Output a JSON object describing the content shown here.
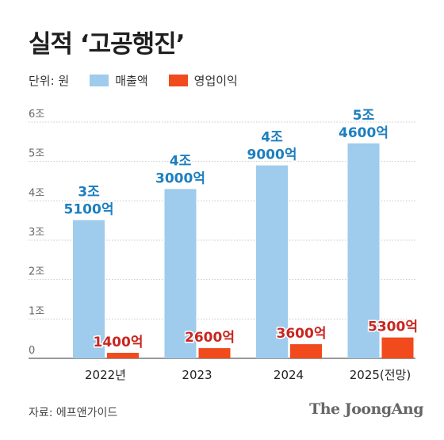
{
  "title": "실적 ‘고공행진’",
  "legend": {
    "unit": "단위: 원",
    "items": [
      {
        "label": "매출액",
        "color": "#9fcbec"
      },
      {
        "label": "영업이익",
        "color": "#f04a1d"
      }
    ]
  },
  "source": "자료: 에프앤가이드",
  "brand": "The JoongAng",
  "chart_data": {
    "type": "bar",
    "categories": [
      "2022년",
      "2023",
      "2024",
      "2025(전망)"
    ],
    "ylim": [
      0,
      6
    ],
    "yunit": "조",
    "yticks": [
      {
        "v": 0,
        "label": "0"
      },
      {
        "v": 1,
        "label": "1조"
      },
      {
        "v": 2,
        "label": "2조"
      },
      {
        "v": 3,
        "label": "3조"
      },
      {
        "v": 4,
        "label": "4조"
      },
      {
        "v": 5,
        "label": "5조"
      },
      {
        "v": 6,
        "label": "6조"
      }
    ],
    "grid": true,
    "series": [
      {
        "name": "매출액",
        "color": "#9fcbec",
        "label_color": "#1d7fbf",
        "values": [
          3.51,
          4.3,
          4.9,
          5.46
        ],
        "labels": [
          [
            "3조",
            "5100억"
          ],
          [
            "4조",
            "3000억"
          ],
          [
            "4조",
            "9000억"
          ],
          [
            "5조",
            "4600억"
          ]
        ]
      },
      {
        "name": "영업이익",
        "color": "#f04a1d",
        "label_color": "#c8261f",
        "values": [
          0.14,
          0.26,
          0.36,
          0.53
        ],
        "labels": [
          [
            "1400억"
          ],
          [
            "2600억"
          ],
          [
            "3600억"
          ],
          [
            "5300억"
          ]
        ]
      }
    ]
  }
}
